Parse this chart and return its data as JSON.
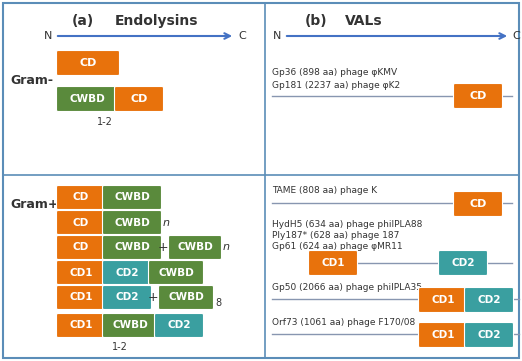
{
  "title_a": "(a)",
  "title_b": "(b)",
  "subtitle_a": "Endolysins",
  "subtitle_b": "VALs",
  "color_cd": "#E8720C",
  "color_cwbd": "#5A8A3C",
  "color_cd2": "#3A9FA0",
  "arrow_color": "#4472C4",
  "border_color": "#5B8DB8",
  "text_color_dark": "#333333",
  "gram_neg_label": "Gram-",
  "gram_pos_label": "Gram+",
  "gram_neg_label2": "1-2",
  "gram_pos_label2": "1-2",
  "val_gram_neg_line1": "Gp36 (898 aa) phage φKMV",
  "val_gram_neg_line2": "Gp181 (2237 aa) phage φK2",
  "val_gram_pos_line1": "TAME (808 aa) phage K",
  "val_gram_pos_line2": "HydH5 (634 aa) phage philPLA88",
  "val_gram_pos_line3": "Ply187* (628 aa) phage 187",
  "val_gram_pos_line4": "Gp61 (624 aa) phage φMR11",
  "val_gram_pos_line5": "Gp50 (2066 aa) phage philPLA35",
  "val_gram_pos_line6": "Orf73 (1061 aa) phage F170/08",
  "fig_width": 5.22,
  "fig_height": 3.61,
  "dpi": 100
}
